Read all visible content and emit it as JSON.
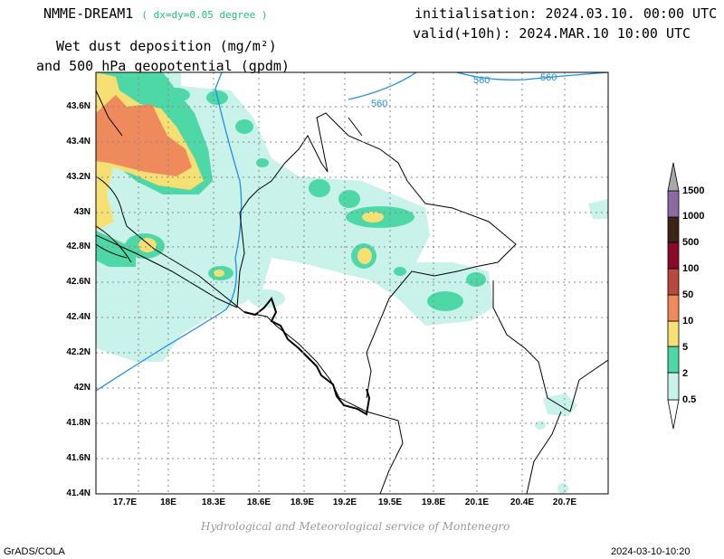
{
  "header": {
    "model": "NMME-DREAM1",
    "resolution": "( dx=dy=0.05 degree )",
    "initialisation": "initialisation: 2024.03.10. 00:00 UTC",
    "valid": "valid(+10h): 2024.MAR.10 10:00 UTC",
    "title_line1": "Wet dust deposition (mg/m²)",
    "title_line2": "and 500 hPa geopotential (gpdm)"
  },
  "axes": {
    "lat_labels": [
      "43.6N",
      "43.4N",
      "43.2N",
      "43N",
      "42.8N",
      "42.6N",
      "42.4N",
      "42.2N",
      "42N",
      "41.8N",
      "41.6N",
      "41.4N"
    ],
    "lon_labels": [
      "17.7E",
      "18E",
      "18.3E",
      "18.6E",
      "18.9E",
      "19.2E",
      "19.5E",
      "19.8E",
      "20.1E",
      "20.4E",
      "20.7E"
    ]
  },
  "contours": {
    "geopotential_labels": [
      "560",
      "560",
      "560"
    ],
    "color": "#1f8fe0"
  },
  "colorbar": {
    "labels": [
      "0.5",
      "2",
      "5",
      "10",
      "50",
      "100",
      "500",
      "1000",
      "1500"
    ],
    "colors": [
      "#c8f2ea",
      "#4ed8a8",
      "#f6df73",
      "#ef8a5c",
      "#b9493d",
      "#8b0a2a",
      "#3b2415",
      "#8d6aa3",
      "#a8a8a8"
    ]
  },
  "footer": {
    "credit": "Hydrological and Meteorological service of Montenegro",
    "left": "GrADS/COLA",
    "right": "2024-03-10-10:20"
  }
}
